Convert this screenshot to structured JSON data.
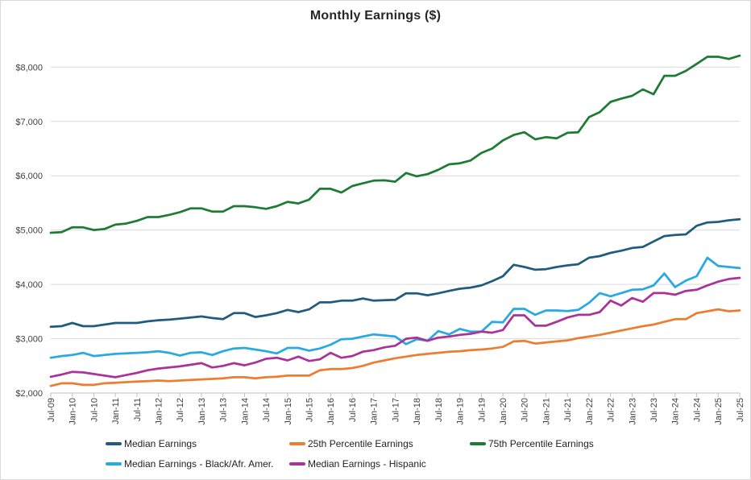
{
  "chart_data": {
    "type": "line",
    "title": "Monthly Earnings ($)",
    "grid": {
      "horizontal": true,
      "vertical": false,
      "color": "#D9D9D9"
    },
    "axis_color": "#BFBFBF",
    "label_color": "#404040",
    "legend_position": "bottom",
    "x_axis": {
      "tick_labels": [
        "Jul-09",
        "Jan-10",
        "Jul-10",
        "Jan-11",
        "Jul-11",
        "Jan-12",
        "Jul-12",
        "Jan-13",
        "Jul-13",
        "Jan-14",
        "Jul-14",
        "Jan-15",
        "Jul-15",
        "Jan-16",
        "Jul-16",
        "Jan-17",
        "Jul-17",
        "Jan-18",
        "Jul-18",
        "Jan-19",
        "Jul-19",
        "Jan-20",
        "Jul-20",
        "Jan-21",
        "Jul-21",
        "Jan-22",
        "Jul-22",
        "Jan-23",
        "Jul-23",
        "Jan-24",
        "Jul-24",
        "Jan-25",
        "Jul-25"
      ],
      "points_per_tick": 2,
      "sampling": "quarterly"
    },
    "y_axis": {
      "tick_values": [
        2000,
        3000,
        4000,
        5000,
        6000,
        7000,
        8000
      ],
      "tick_labels": [
        "$2,000",
        "$3,000",
        "$4,000",
        "$5,000",
        "$6,000",
        "$7,000",
        "$8,000"
      ],
      "range": [
        2000,
        8480
      ]
    },
    "series": [
      {
        "name": "Median Earnings",
        "color": "#1F5C7E",
        "values": [
          3220,
          3230,
          3290,
          3230,
          3230,
          3260,
          3290,
          3290,
          3290,
          3320,
          3340,
          3350,
          3370,
          3390,
          3410,
          3380,
          3360,
          3470,
          3470,
          3400,
          3430,
          3470,
          3530,
          3490,
          3540,
          3670,
          3670,
          3700,
          3700,
          3740,
          3700,
          3710,
          3715,
          3835,
          3835,
          3800,
          3835,
          3880,
          3920,
          3940,
          3980,
          4060,
          4150,
          4360,
          4320,
          4270,
          4280,
          4320,
          4350,
          4370,
          4490,
          4520,
          4580,
          4620,
          4670,
          4690,
          4790,
          4890,
          4910,
          4920,
          5080,
          5140,
          5150,
          5180,
          5200
        ]
      },
      {
        "name": "25th Percentile Earnings",
        "color": "#ED7D31",
        "values": [
          2130,
          2180,
          2180,
          2150,
          2150,
          2180,
          2190,
          2200,
          2210,
          2220,
          2230,
          2220,
          2230,
          2240,
          2250,
          2260,
          2270,
          2290,
          2290,
          2270,
          2290,
          2300,
          2320,
          2320,
          2320,
          2420,
          2440,
          2440,
          2460,
          2500,
          2560,
          2600,
          2640,
          2670,
          2700,
          2720,
          2740,
          2760,
          2770,
          2790,
          2800,
          2820,
          2850,
          2950,
          2960,
          2910,
          2930,
          2950,
          2970,
          3010,
          3040,
          3070,
          3110,
          3150,
          3190,
          3230,
          3260,
          3310,
          3360,
          3360,
          3470,
          3505,
          3540,
          3505,
          3520
        ]
      },
      {
        "name": "75th Percentile Earnings",
        "color": "#1E7B34",
        "values": [
          4950,
          4960,
          5050,
          5050,
          5000,
          5020,
          5100,
          5120,
          5170,
          5240,
          5240,
          5280,
          5330,
          5400,
          5400,
          5340,
          5340,
          5440,
          5440,
          5420,
          5390,
          5440,
          5520,
          5490,
          5560,
          5760,
          5760,
          5690,
          5810,
          5860,
          5910,
          5915,
          5890,
          6050,
          5990,
          6030,
          6110,
          6210,
          6230,
          6280,
          6420,
          6500,
          6650,
          6750,
          6800,
          6670,
          6710,
          6690,
          6790,
          6800,
          7080,
          7170,
          7360,
          7420,
          7470,
          7590,
          7500,
          7840,
          7840,
          7930,
          8060,
          8190,
          8190,
          8150,
          8210
        ]
      },
      {
        "name": "Median Earnings - Black/Afr. Amer.",
        "color": "#29A9E1",
        "values": [
          2650,
          2680,
          2700,
          2740,
          2680,
          2700,
          2720,
          2730,
          2740,
          2750,
          2770,
          2740,
          2690,
          2740,
          2750,
          2700,
          2770,
          2820,
          2830,
          2800,
          2770,
          2730,
          2830,
          2830,
          2780,
          2820,
          2890,
          2990,
          3000,
          3040,
          3080,
          3060,
          3040,
          2900,
          2990,
          2960,
          3140,
          3080,
          3180,
          3130,
          3130,
          3310,
          3300,
          3550,
          3550,
          3440,
          3520,
          3520,
          3510,
          3530,
          3660,
          3840,
          3780,
          3840,
          3900,
          3910,
          3980,
          4200,
          3950,
          4070,
          4150,
          4490,
          4340,
          4320,
          4300
        ]
      },
      {
        "name": "Median Earnings - Hispanic",
        "color": "#A93399",
        "values": [
          2300,
          2340,
          2390,
          2380,
          2350,
          2320,
          2290,
          2330,
          2370,
          2420,
          2450,
          2470,
          2490,
          2520,
          2550,
          2470,
          2500,
          2550,
          2510,
          2560,
          2630,
          2650,
          2600,
          2670,
          2590,
          2620,
          2740,
          2650,
          2680,
          2760,
          2790,
          2840,
          2870,
          3000,
          3020,
          2960,
          3020,
          3040,
          3070,
          3090,
          3130,
          3110,
          3160,
          3430,
          3430,
          3240,
          3240,
          3310,
          3390,
          3440,
          3440,
          3490,
          3700,
          3610,
          3750,
          3680,
          3840,
          3840,
          3810,
          3880,
          3900,
          3980,
          4050,
          4100,
          4120
        ]
      }
    ],
    "legend_rows": [
      [
        0,
        1,
        2
      ],
      [
        3,
        4
      ]
    ]
  }
}
